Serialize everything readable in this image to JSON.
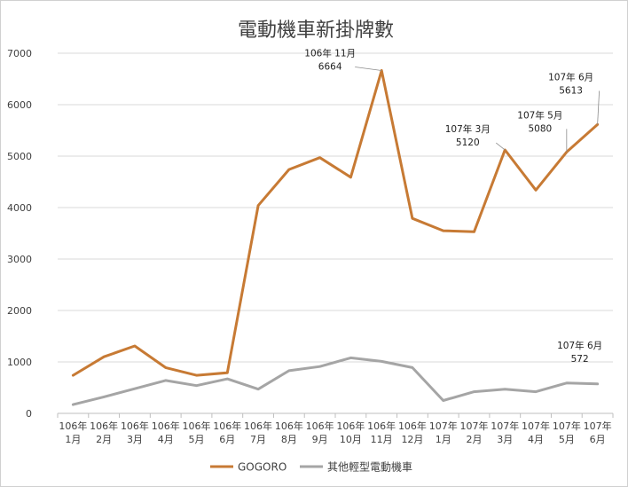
{
  "chart_data": {
    "type": "line",
    "title": "電動機車新掛牌數",
    "categories": [
      [
        "106年",
        "1月"
      ],
      [
        "106年",
        "2月"
      ],
      [
        "106年",
        "3月"
      ],
      [
        "106年",
        "4月"
      ],
      [
        "106年",
        "5月"
      ],
      [
        "106年",
        "6月"
      ],
      [
        "106年",
        "7月"
      ],
      [
        "106年",
        "8月"
      ],
      [
        "106年",
        "9月"
      ],
      [
        "106年",
        "10月"
      ],
      [
        "106年",
        "11月"
      ],
      [
        "106年",
        "12月"
      ],
      [
        "107年",
        "1月"
      ],
      [
        "107年",
        "2月"
      ],
      [
        "107年",
        "3月"
      ],
      [
        "107年",
        "4月"
      ],
      [
        "107年",
        "5月"
      ],
      [
        "107年",
        "6月"
      ]
    ],
    "series": [
      {
        "name": "GOGORO",
        "color": "#c77a34",
        "values": [
          740,
          1100,
          1310,
          890,
          740,
          790,
          4040,
          4740,
          4970,
          4590,
          6664,
          3790,
          3550,
          3530,
          5120,
          4340,
          5080,
          5613
        ]
      },
      {
        "name": "其他輕型電動機車",
        "color": "#a5a5a5",
        "values": [
          170,
          320,
          480,
          640,
          540,
          670,
          470,
          830,
          910,
          1080,
          1010,
          890,
          250,
          420,
          470,
          420,
          590,
          572
        ]
      }
    ],
    "yticks": [
      "0",
      "1000",
      "2000",
      "3000",
      "4000",
      "5000",
      "6000",
      "7000"
    ],
    "ylim": [
      0,
      7000
    ],
    "grid": true,
    "legend": "bottom",
    "annotations": [
      {
        "series": 0,
        "index": 10,
        "label": [
          "106年 11月",
          "6664"
        ]
      },
      {
        "series": 0,
        "index": 14,
        "label": [
          "107年 3月",
          "5120"
        ]
      },
      {
        "series": 0,
        "index": 16,
        "label": [
          "107年 5月",
          "5080"
        ]
      },
      {
        "series": 0,
        "index": 17,
        "label": [
          "107年 6月",
          "5613"
        ]
      },
      {
        "series": 1,
        "index": 17,
        "label": [
          "107年 6月",
          "572"
        ]
      }
    ]
  }
}
